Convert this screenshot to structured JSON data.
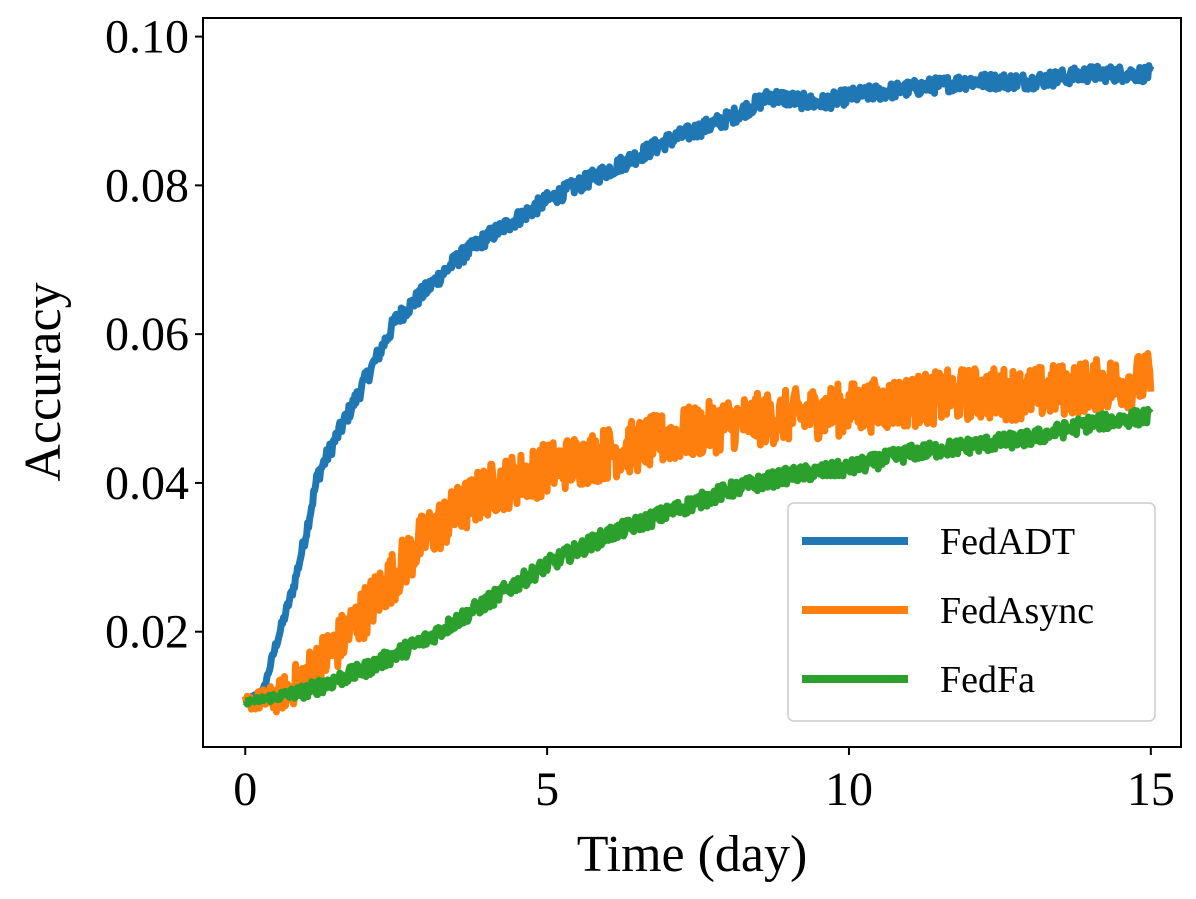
{
  "chart_data": {
    "type": "line",
    "title": "",
    "xlabel": "Time (day)",
    "ylabel": "Accuracy",
    "xlim": [
      -0.7,
      15.5
    ],
    "ylim": [
      0.0045,
      0.1025
    ],
    "xticks": [
      0,
      5,
      10,
      15
    ],
    "xtick_labels": [
      "0",
      "5",
      "10",
      "15"
    ],
    "yticks": [
      0.02,
      0.04,
      0.06,
      0.08,
      0.1
    ],
    "ytick_labels": [
      "0.02",
      "0.04",
      "0.06",
      "0.08",
      "0.10"
    ],
    "grid": false,
    "legend_position": "lower-right",
    "series": [
      {
        "name": "FedADT",
        "color": "#1f77b4",
        "noise": 0.0011,
        "x": [
          0,
          0.3,
          0.5,
          0.8,
          1.0,
          1.2,
          1.5,
          2.0,
          2.5,
          3.0,
          3.5,
          4.0,
          5.0,
          6.0,
          7.0,
          8.0,
          8.7,
          9.5,
          10.0,
          11.0,
          12.0,
          13.0,
          14.0,
          15.0
        ],
        "values": [
          0.0105,
          0.012,
          0.018,
          0.026,
          0.033,
          0.041,
          0.046,
          0.054,
          0.062,
          0.066,
          0.07,
          0.073,
          0.078,
          0.082,
          0.086,
          0.089,
          0.092,
          0.091,
          0.092,
          0.093,
          0.094,
          0.094,
          0.095,
          0.095
        ]
      },
      {
        "name": "FedAsync",
        "color": "#ff7f0e",
        "noise": 0.0036,
        "x": [
          0,
          0.5,
          1.0,
          1.5,
          2.0,
          2.5,
          3.0,
          3.5,
          4.0,
          5.0,
          6.0,
          7.0,
          8.0,
          9.0,
          10.0,
          11.0,
          12.0,
          13.0,
          14.0,
          15.0
        ],
        "values": [
          0.0105,
          0.011,
          0.014,
          0.018,
          0.023,
          0.028,
          0.033,
          0.036,
          0.039,
          0.042,
          0.044,
          0.046,
          0.048,
          0.049,
          0.05,
          0.051,
          0.052,
          0.052,
          0.053,
          0.054
        ]
      },
      {
        "name": "FedFa",
        "color": "#2ca02c",
        "noise": 0.0011,
        "x": [
          0,
          1.0,
          2.0,
          3.0,
          4.0,
          5.0,
          6.0,
          7.0,
          8.0,
          9.0,
          10.0,
          11.0,
          12.0,
          13.0,
          14.0,
          15.0
        ],
        "values": [
          0.0105,
          0.012,
          0.015,
          0.019,
          0.024,
          0.029,
          0.033,
          0.036,
          0.039,
          0.041,
          0.042,
          0.044,
          0.045,
          0.046,
          0.048,
          0.049
        ]
      }
    ]
  }
}
